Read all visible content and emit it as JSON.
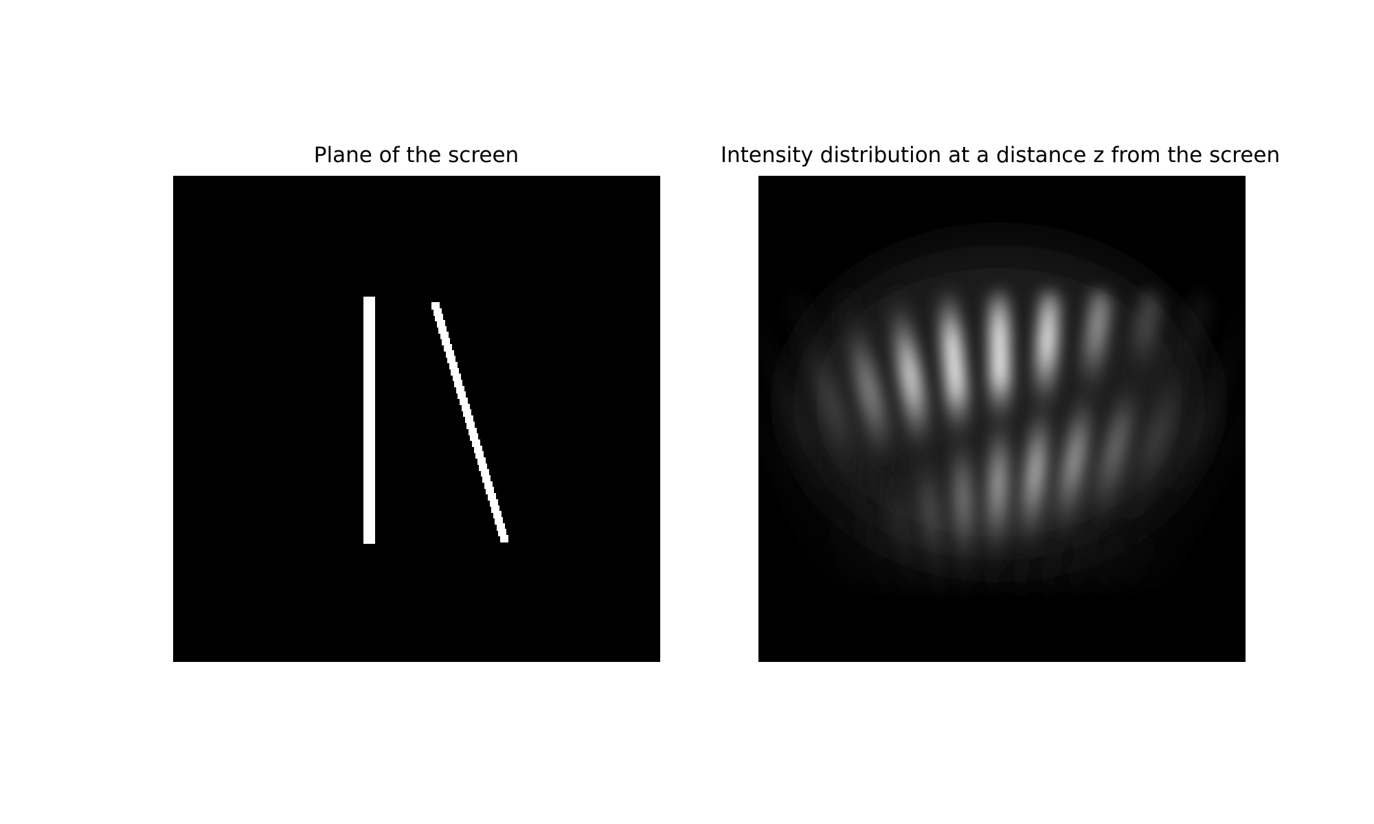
{
  "figure": {
    "left_title": "Plane of the screen",
    "right_title": "Intensity distribution at a distance z from the screen"
  },
  "colors": {
    "background": "#ffffff",
    "image_background": "#000000",
    "slit": "#ffffff",
    "colormap": "gray"
  },
  "slits": {
    "count": 2,
    "description_items": [
      "vertical slit",
      "tilted slit"
    ]
  }
}
